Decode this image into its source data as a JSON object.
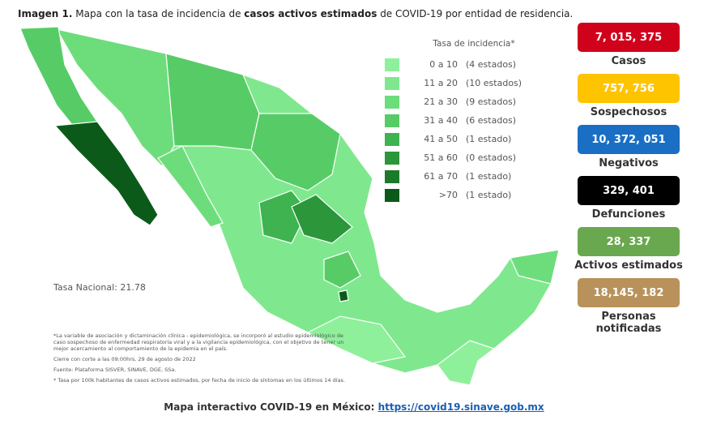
{
  "header": {
    "title_parts": [
      {
        "text": "Imagen 1.",
        "bold": true
      },
      {
        "text": " Mapa con la tasa de incidencia de ",
        "bold": false
      },
      {
        "text": "casos activos estimados",
        "bold": true
      },
      {
        "text": " de COVID-19 por entidad de residencia.",
        "bold": false
      }
    ]
  },
  "legend": {
    "title": "Tasa de incidencia*",
    "items": [
      {
        "range": "0 a 10",
        "count": "(4 estados)",
        "color": "#8ff09c"
      },
      {
        "range": "11 a 20",
        "count": "(10 estados)",
        "color": "#7fe88e"
      },
      {
        "range": "21 a 30",
        "count": "(9 estados)",
        "color": "#6ddd7c"
      },
      {
        "range": "31 a 40",
        "count": "(6 estados)",
        "color": "#57cc66"
      },
      {
        "range": "41 a 50",
        "count": "(1 estado)",
        "color": "#3fb34f"
      },
      {
        "range": "51 a 60",
        "count": "(0 estados)",
        "color": "#2b963a"
      },
      {
        "range": "61 a 70",
        "count": "(1 estado)",
        "color": "#1c7a2b"
      },
      {
        "range": ">70",
        "count": "(1 estado)",
        "color": "#0c5a1a"
      }
    ]
  },
  "national_rate": "Tasa Nacional: 21.78",
  "stats": [
    {
      "value": "7, 015, 375",
      "label": "Casos",
      "color": "#d0021b"
    },
    {
      "value": "757, 756",
      "label": "Sospechosos",
      "color": "#ffc400"
    },
    {
      "value": "10, 372, 051",
      "label": "Negativos",
      "color": "#1a6fc4"
    },
    {
      "value": "329, 401",
      "label": "Defunciones",
      "color": "#000000"
    },
    {
      "value": "28, 337",
      "label": "Activos estimados",
      "color": "#6aa84f"
    },
    {
      "value": "18,145, 182",
      "label": "Personas notificadas",
      "color": "#b8925a"
    }
  ],
  "notes": [
    "*La variable de asociación y dictaminación clínica - epidemiológica, se incorporó al estudio epidemiológico de caso sospechoso de enfermedad respiratoria viral y a la vigilancia epidemiológica, con el objetivo de tener un mejor acercamiento al comportamiento de la epidemia en el país.",
    "Cierre con corte a las 09:00hrs, 29 de agosto de 2022",
    "Fuente: Plataforma SISVER, SINAVE, DGE, SSa.",
    "* Tasa por 100k habitantes de casos activos estimados, por fecha de inicio de síntomas en los últimos 14 días."
  ],
  "footer": {
    "text": "Mapa interactivo COVID-19 en México:",
    "link": "https://covid19.sinave.gob.mx"
  }
}
